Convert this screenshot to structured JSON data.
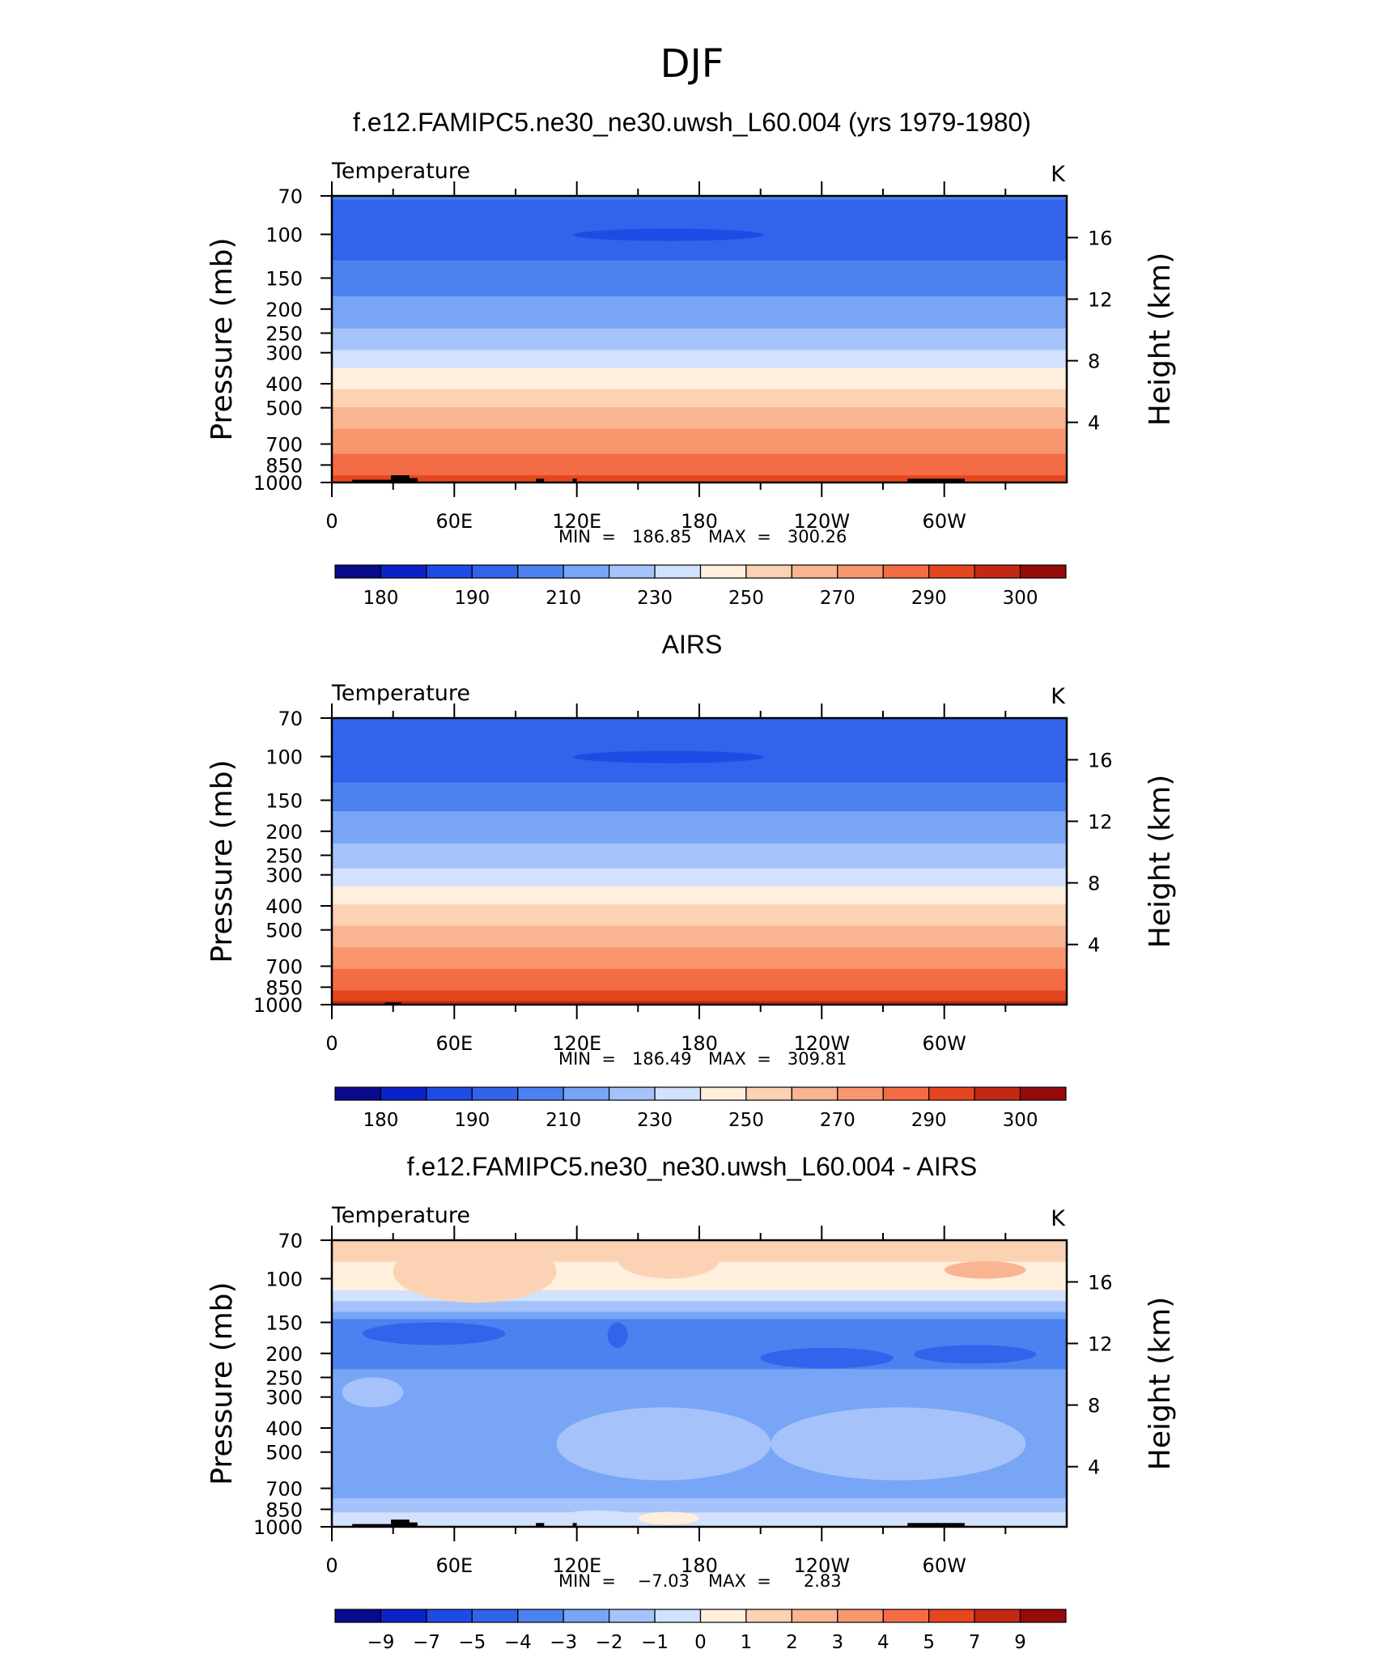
{
  "figure_title": "DJF",
  "cmap_abs": [
    "#0a0a8c",
    "#0a23c8",
    "#1e4be6",
    "#3264eb",
    "#4b82f0",
    "#78a5f5",
    "#a5c3fa",
    "#d2e1fc",
    "#ffefdc",
    "#fcd2b4",
    "#f9b491",
    "#f8966e",
    "#f46c46",
    "#e6461e",
    "#c32814",
    "#960a0a"
  ],
  "cmap_diff": [
    "#0a0a8c",
    "#0a23c8",
    "#1e4be6",
    "#3264eb",
    "#4b82f0",
    "#78a5f5",
    "#a5c3fa",
    "#d2e1fc",
    "#ffefdc",
    "#fcd2b4",
    "#f9b491",
    "#f8966e",
    "#f46c46",
    "#e6461e",
    "#c32814",
    "#960a0a"
  ],
  "panels": [
    {
      "title": "f.e12.FAMIPC5.ne30_ne30.uwsh_L60.004 (yrs 1979-1980)",
      "left_label": "Temperature",
      "units": "K",
      "min_label": "MIN  =   186.85",
      "max_label": "MAX  =   300.26",
      "colorbar_labels": [
        "180",
        "190",
        "210",
        "230",
        "250",
        "270",
        "290",
        "300"
      ]
    },
    {
      "title": "AIRS",
      "left_label": "Temperature",
      "units": "K",
      "min_label": "MIN  =   186.49",
      "max_label": "MAX  =   309.81",
      "colorbar_labels": [
        "180",
        "190",
        "210",
        "230",
        "250",
        "270",
        "290",
        "300"
      ]
    },
    {
      "title": "f.e12.FAMIPC5.ne30_ne30.uwsh_L60.004 - AIRS",
      "left_label": "Temperature",
      "units": "K",
      "min_label": "MIN  =    −7.03",
      "max_label": "MAX  =      2.83",
      "colorbar_labels": [
        "−9",
        "−7",
        "−5",
        "−4",
        "−3",
        "−2",
        "−1",
        "0",
        "1",
        "2",
        "3",
        "4",
        "5",
        "7",
        "9"
      ]
    }
  ],
  "chart_data": [
    {
      "type": "heatmap",
      "title": "f.e12.FAMIPC5.ne30_ne30.uwsh_L60.004 (yrs 1979-1980)",
      "subtitle": "Temperature",
      "units": "K",
      "xlabel": "",
      "ylabel": "Pressure (mb)",
      "y2label": "Height (km)",
      "x_ticks": [
        "0",
        "60E",
        "120E",
        "180",
        "120W",
        "60W"
      ],
      "x_tick_values": [
        0,
        60,
        120,
        180,
        240,
        300
      ],
      "xlim": [
        0,
        360
      ],
      "y_ticks": [
        "70",
        "100",
        "150",
        "200",
        "250",
        "300",
        "400",
        "500",
        "700",
        "850",
        "1000"
      ],
      "y_tick_values": [
        70,
        100,
        150,
        200,
        250,
        300,
        400,
        500,
        700,
        850,
        1000
      ],
      "ylim": [
        1000,
        70
      ],
      "y_scale": "log",
      "y2_ticks": [
        "4",
        "8",
        "12",
        "16"
      ],
      "y2_tick_values": [
        4,
        8,
        12,
        16
      ],
      "levels": [
        180,
        185,
        190,
        200,
        210,
        220,
        230,
        240,
        250,
        260,
        270,
        280,
        290,
        295,
        300
      ],
      "min": 186.85,
      "max": 300.26,
      "profile": [
        [
          70,
          201
        ],
        [
          100,
          193
        ],
        [
          150,
          205
        ],
        [
          200,
          214
        ],
        [
          250,
          222
        ],
        [
          300,
          232
        ],
        [
          400,
          248
        ],
        [
          500,
          260
        ],
        [
          700,
          276
        ],
        [
          850,
          285
        ],
        [
          1000,
          293
        ]
      ]
    },
    {
      "type": "heatmap",
      "title": "AIRS",
      "subtitle": "Temperature",
      "units": "K",
      "xlabel": "",
      "ylabel": "Pressure (mb)",
      "y2label": "Height (km)",
      "x_ticks": [
        "0",
        "60E",
        "120E",
        "180",
        "120W",
        "60W"
      ],
      "x_tick_values": [
        0,
        60,
        120,
        180,
        240,
        300
      ],
      "xlim": [
        0,
        360
      ],
      "y_ticks": [
        "70",
        "100",
        "150",
        "200",
        "250",
        "300",
        "400",
        "500",
        "700",
        "850",
        "1000"
      ],
      "y_tick_values": [
        70,
        100,
        150,
        200,
        250,
        300,
        400,
        500,
        700,
        850,
        1000
      ],
      "ylim": [
        1000,
        70
      ],
      "y_scale": "log",
      "y2_ticks": [
        "4",
        "8",
        "12",
        "16"
      ],
      "y2_tick_values": [
        4,
        8,
        12,
        16
      ],
      "levels": [
        180,
        185,
        190,
        200,
        210,
        220,
        230,
        240,
        250,
        260,
        270,
        280,
        290,
        295,
        300
      ],
      "min": 186.49,
      "max": 309.81,
      "profile": [
        [
          70,
          199
        ],
        [
          100,
          191
        ],
        [
          150,
          206
        ],
        [
          200,
          216
        ],
        [
          250,
          224
        ],
        [
          300,
          234
        ],
        [
          400,
          250
        ],
        [
          500,
          262
        ],
        [
          700,
          278
        ],
        [
          850,
          288
        ],
        [
          1000,
          296
        ]
      ]
    },
    {
      "type": "heatmap",
      "title": "f.e12.FAMIPC5.ne30_ne30.uwsh_L60.004 - AIRS",
      "subtitle": "Temperature",
      "units": "K",
      "xlabel": "",
      "ylabel": "Pressure (mb)",
      "y2label": "Height (km)",
      "x_ticks": [
        "0",
        "60E",
        "120E",
        "180",
        "120W",
        "60W"
      ],
      "x_tick_values": [
        0,
        60,
        120,
        180,
        240,
        300
      ],
      "xlim": [
        0,
        360
      ],
      "y_ticks": [
        "70",
        "100",
        "150",
        "200",
        "250",
        "300",
        "400",
        "500",
        "700",
        "850",
        "1000"
      ],
      "y_tick_values": [
        70,
        100,
        150,
        200,
        250,
        300,
        400,
        500,
        700,
        850,
        1000
      ],
      "ylim": [
        1000,
        70
      ],
      "y_scale": "log",
      "y2_ticks": [
        "4",
        "8",
        "12",
        "16"
      ],
      "y2_tick_values": [
        4,
        8,
        12,
        16
      ],
      "levels": [
        -9,
        -7,
        -5,
        -4,
        -3,
        -2,
        -1,
        0,
        1,
        2,
        3,
        4,
        5,
        7,
        9
      ],
      "min": -7.03,
      "max": 2.83,
      "profile": [
        [
          70,
          1.5
        ],
        [
          100,
          0.6
        ],
        [
          120,
          -0.5
        ],
        [
          150,
          -3.5
        ],
        [
          200,
          -3.6
        ],
        [
          250,
          -2.6
        ],
        [
          300,
          -2.5
        ],
        [
          400,
          -2.2
        ],
        [
          500,
          -2.4
        ],
        [
          700,
          -2.6
        ],
        [
          850,
          -1.2
        ],
        [
          1000,
          -0.3
        ]
      ]
    }
  ]
}
